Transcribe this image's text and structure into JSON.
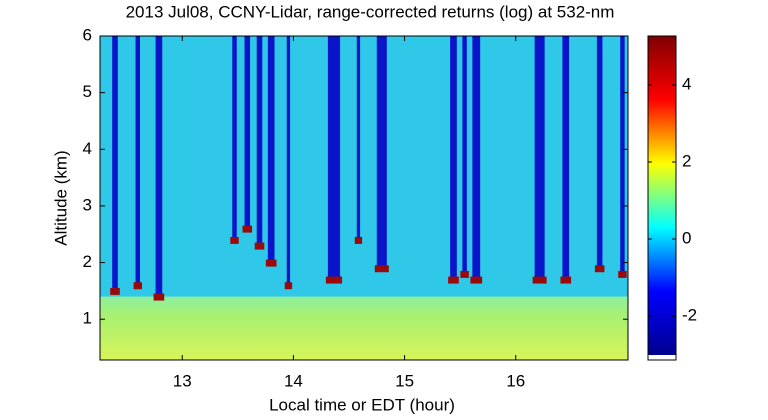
{
  "chart_data": {
    "type": "heatmap",
    "title": "2013 Jul08, CCNY-Lidar, range-corrected returns (log) at 532-nm",
    "x_label": "Local time or EDT (hour)",
    "y_label": "Altitude (km)",
    "xlim": [
      12.26,
      17.01
    ],
    "xticks": [
      13,
      14,
      15,
      16
    ],
    "ylim": [
      0.28,
      6
    ],
    "yticks": [
      1,
      2,
      3,
      4,
      5,
      6
    ],
    "clim": [
      -3.01,
      5.27
    ],
    "cticks": [
      -2,
      0,
      2,
      4
    ],
    "colormap": [
      "#00008f",
      "#0000ff",
      "#00ffff",
      "#ffff00",
      "#ff0000",
      "#800000"
    ],
    "boundary_layer_top": 1.4,
    "columns": [
      {
        "x": [
          12.37,
          12.42
        ],
        "base": 1.5
      },
      {
        "x": [
          12.58,
          12.62
        ],
        "base": 1.6
      },
      {
        "x": [
          12.76,
          12.82
        ],
        "base": 1.4
      },
      {
        "x": [
          13.45,
          13.49
        ],
        "base": 2.4
      },
      {
        "x": [
          13.56,
          13.61
        ],
        "base": 2.6
      },
      {
        "x": [
          13.67,
          13.72
        ],
        "base": 2.3
      },
      {
        "x": [
          13.77,
          13.83
        ],
        "base": 2.0
      },
      {
        "x": [
          13.94,
          13.97
        ],
        "base": 1.6
      },
      {
        "x": [
          14.31,
          14.42
        ],
        "base": 1.7
      },
      {
        "x": [
          14.57,
          14.6
        ],
        "base": 2.4
      },
      {
        "x": [
          14.75,
          14.84
        ],
        "base": 1.9
      },
      {
        "x": [
          15.41,
          15.47
        ],
        "base": 1.7
      },
      {
        "x": [
          15.52,
          15.56
        ],
        "base": 1.8
      },
      {
        "x": [
          15.61,
          15.68
        ],
        "base": 1.7
      },
      {
        "x": [
          16.17,
          16.26
        ],
        "base": 1.7
      },
      {
        "x": [
          16.42,
          16.48
        ],
        "base": 1.7
      },
      {
        "x": [
          16.73,
          16.78
        ],
        "base": 1.9
      },
      {
        "x": [
          16.94,
          16.98
        ],
        "base": 1.8
      }
    ]
  }
}
